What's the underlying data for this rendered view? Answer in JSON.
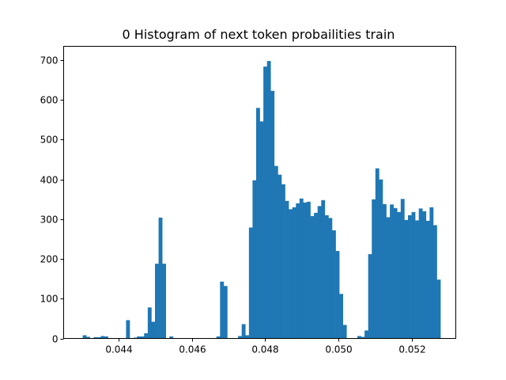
{
  "chart_data": {
    "type": "bar",
    "title": "0 Histogram of next token probailities train",
    "xlabel": "",
    "ylabel": "",
    "xlim": [
      0.0425,
      0.0532
    ],
    "ylim": [
      0,
      735
    ],
    "bar_color": "#1f77b4",
    "grid": false,
    "x_ticks": [
      {
        "value": 0.044,
        "label": "0.044"
      },
      {
        "value": 0.046,
        "label": "0.046"
      },
      {
        "value": 0.048,
        "label": "0.048"
      },
      {
        "value": 0.05,
        "label": "0.050"
      },
      {
        "value": 0.052,
        "label": "0.052"
      }
    ],
    "y_ticks": [
      {
        "value": 0,
        "label": "0"
      },
      {
        "value": 100,
        "label": "100"
      },
      {
        "value": 200,
        "label": "200"
      },
      {
        "value": 300,
        "label": "300"
      },
      {
        "value": 400,
        "label": "400"
      },
      {
        "value": 500,
        "label": "500"
      },
      {
        "value": 600,
        "label": "600"
      },
      {
        "value": 700,
        "label": "700"
      }
    ],
    "bin_start": 0.04302,
    "bin_width": 9.86e-05,
    "counts": [
      8,
      4,
      0,
      3,
      3,
      6,
      5,
      0,
      0,
      0,
      0,
      0,
      46,
      0,
      2,
      5,
      5,
      13,
      78,
      42,
      188,
      304,
      188,
      0,
      5,
      0,
      0,
      0,
      0,
      0,
      0,
      0,
      0,
      0,
      0,
      0,
      0,
      5,
      143,
      132,
      0,
      0,
      0,
      6,
      36,
      8,
      279,
      398,
      580,
      546,
      684,
      698,
      623,
      434,
      412,
      388,
      346,
      325,
      330,
      340,
      352,
      342,
      344,
      308,
      316,
      333,
      348,
      310,
      303,
      272,
      220,
      112,
      34,
      0,
      0,
      0,
      6,
      4,
      20,
      212,
      350,
      428,
      400,
      338,
      305,
      337,
      328,
      318,
      351,
      298,
      310,
      318,
      297,
      327,
      320,
      296,
      330,
      285,
      148
    ]
  }
}
